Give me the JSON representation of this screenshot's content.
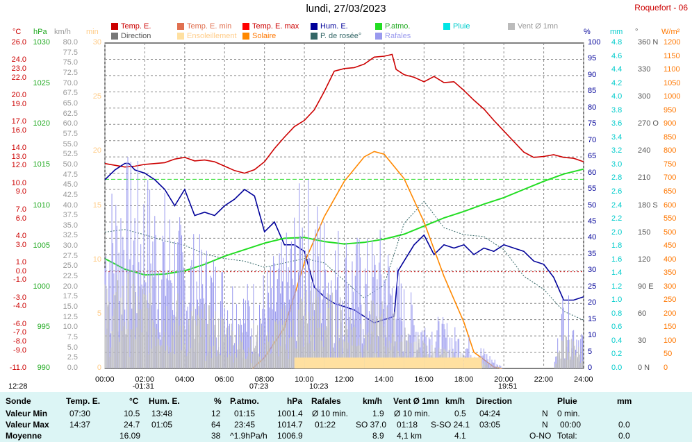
{
  "header": {
    "title": "lundi, 27/03/2023",
    "station": "Roquefort - 06"
  },
  "legend": [
    {
      "label": "Temp. E.",
      "color": "#cc0000",
      "text_color": "#cc0000"
    },
    {
      "label": "Temp. E. min",
      "color": "#e07050",
      "text_color": "#e07050"
    },
    {
      "label": "Temp. E. max",
      "color": "#ff0000",
      "text_color": "#cc0000"
    },
    {
      "label": "Hum. E.",
      "color": "#000099",
      "text_color": "#000099"
    },
    {
      "label": "P.atmo.",
      "color": "#22dd22",
      "text_color": "#22aa22"
    },
    {
      "label": "Pluie",
      "color": "#00e5e5",
      "text_color": "#00cccc"
    },
    {
      "label": "Vent Ø 1mn",
      "color": "#bbbbbb",
      "text_color": "#999999"
    },
    {
      "label": "Direction",
      "color": "#777777",
      "text_color": "#555555"
    },
    {
      "label": "Ensoleillement",
      "color": "#ffe0a0",
      "text_color": "#ffcc88"
    },
    {
      "label": "Solaire",
      "color": "#ff8800",
      "text_color": "#ff7700"
    },
    {
      "label": "P. de rosée°",
      "color": "#336666",
      "text_color": "#336666"
    },
    {
      "label": "Rafales",
      "color": "#9999ee",
      "text_color": "#9999ee"
    }
  ],
  "units": {
    "temp": "°C",
    "press": "hPa",
    "wind": "km/h",
    "sun": "min",
    "hum": "%",
    "rain": "mm",
    "dir": "°",
    "solar": "W/m²"
  },
  "axes": {
    "temp_ticks": [
      "26.0",
      "24.0",
      "23.0",
      "22.0",
      "20.0",
      "19.0",
      "17.0",
      "16.0",
      "14.0",
      "13.0",
      "12.0",
      "10.0",
      "9.0",
      "7.0",
      "6.0",
      "4.0",
      "3.0",
      "1.0",
      "0.0",
      "-1.0",
      "-3.0",
      "-4.0",
      "-6.0",
      "-7.0",
      "-8.0",
      "-9.0",
      "-11.0"
    ],
    "temp_values": [
      26,
      24,
      23,
      22,
      20,
      19,
      17,
      16,
      14,
      13,
      12,
      10,
      9,
      7,
      6,
      4,
      3,
      1,
      0,
      -1,
      -3,
      -4,
      -6,
      -7,
      -8,
      -9,
      -11
    ],
    "temp_range": [
      -11,
      26
    ],
    "press_ticks": [
      "1030",
      "1025",
      "1020",
      "1015",
      "1010",
      "1005",
      "1000",
      "995",
      "990"
    ],
    "press_range": [
      990,
      1030
    ],
    "wind_ticks": [
      "80.0",
      "77.5",
      "75.0",
      "72.5",
      "70.0",
      "67.5",
      "65.0",
      "62.5",
      "60.0",
      "57.5",
      "55.0",
      "52.5",
      "50.0",
      "47.5",
      "45.0",
      "42.5",
      "40.0",
      "37.5",
      "35.0",
      "32.5",
      "30.0",
      "27.5",
      "25.0",
      "22.5",
      "20.0",
      "17.5",
      "15.0",
      "12.5",
      "10.0",
      "7.5",
      "5.0",
      "2.5",
      "0.0"
    ],
    "wind_range": [
      0,
      80
    ],
    "sun_ticks": [
      "30",
      "25",
      "20",
      "15",
      "10",
      "5",
      "0"
    ],
    "sun_range": [
      0,
      30
    ],
    "hum_ticks": [
      "100",
      "95",
      "90",
      "85",
      "80",
      "75",
      "70",
      "65",
      "60",
      "55",
      "50",
      "45",
      "40",
      "35",
      "30",
      "25",
      "20",
      "15",
      "10",
      "5",
      "0"
    ],
    "hum_range": [
      0,
      100
    ],
    "rain_ticks": [
      "4.8",
      "4.6",
      "4.4",
      "4.2",
      "4.0",
      "3.8",
      "3.6",
      "3.4",
      "3.2",
      "3.0",
      "2.8",
      "2.6",
      "2.4",
      "2.2",
      "2.0",
      "1.8",
      "1.6",
      "1.4",
      "1.2",
      "1.0",
      "0.8",
      "0.6",
      "0.4",
      "0.2",
      "0.0"
    ],
    "rain_range": [
      0,
      4.8
    ],
    "dir_ticks": [
      "360 N",
      "330",
      "300",
      "270 O",
      "240",
      "210",
      "180 S",
      "150",
      "120",
      "90 E",
      "60",
      "30",
      "0 N"
    ],
    "dir_values": [
      360,
      330,
      300,
      270,
      240,
      210,
      180,
      150,
      120,
      90,
      60,
      30,
      0
    ],
    "dir_range": [
      0,
      360
    ],
    "solar_ticks": [
      "1200",
      "1150",
      "1100",
      "1050",
      "1000",
      "950",
      "900",
      "850",
      "800",
      "750",
      "700",
      "650",
      "600",
      "550",
      "500",
      "450",
      "400",
      "350",
      "300",
      "250",
      "200",
      "150",
      "100",
      "50",
      "0"
    ],
    "solar_range": [
      0,
      1200
    ],
    "time_ticks": [
      "00:00",
      "02:00",
      "04:00",
      "06:00",
      "08:00",
      "10:00",
      "12:00",
      "14:00",
      "16:00",
      "18:00",
      "20:00",
      "22:00",
      "24:00"
    ],
    "markers": [
      {
        "label": "12:28",
        "hour": -1
      },
      {
        "label": "-01:31",
        "hour": 1.52
      },
      {
        "label": "07:23",
        "hour": 7.38
      },
      {
        "label": "10:23",
        "hour": 10.38
      },
      {
        "label": "19:51",
        "hour": 19.85
      }
    ]
  },
  "chart_data": {
    "type": "line",
    "x_unit": "hour",
    "xlim": [
      0,
      24
    ],
    "series": [
      {
        "name": "Temp. E.",
        "axis": "temp",
        "color": "#cc0000",
        "x": [
          0,
          1,
          1.5,
          2,
          3,
          3.5,
          4,
          4.5,
          5,
          5.5,
          6,
          6.5,
          7,
          7.5,
          8,
          8.5,
          9,
          9.5,
          10,
          10.5,
          11,
          11.5,
          12,
          12.5,
          13,
          13.5,
          14,
          14.4,
          14.6,
          15,
          15.5,
          16,
          16.5,
          17,
          17.5,
          18,
          18.5,
          19,
          19.5,
          20,
          20.5,
          21,
          21.5,
          22,
          22.5,
          23,
          23.5,
          24
        ],
        "y": [
          12.3,
          11.9,
          12.0,
          12.2,
          12.4,
          12.8,
          13.0,
          12.6,
          12.7,
          12.5,
          12.0,
          11.5,
          11.2,
          11.6,
          12.5,
          14.0,
          15.3,
          16.5,
          17.2,
          18.4,
          20.5,
          22.8,
          23.1,
          23.2,
          23.6,
          24.4,
          24.5,
          24.7,
          23.0,
          22.4,
          22.1,
          21.6,
          22.2,
          21.5,
          21.6,
          20.6,
          19.5,
          18.5,
          17.2,
          16.0,
          14.8,
          13.6,
          13.0,
          13.1,
          13.3,
          13.0,
          12.9,
          12.5
        ]
      },
      {
        "name": "Hum. E.",
        "axis": "hum",
        "color": "#000099",
        "x": [
          0,
          0.5,
          1,
          1.2,
          1.5,
          2,
          2.5,
          3,
          3.5,
          4,
          4.5,
          5,
          5.5,
          6,
          6.5,
          7,
          7.5,
          8,
          8.5,
          9,
          9.5,
          10,
          10.5,
          11,
          11.5,
          12,
          12.5,
          13,
          13.5,
          14,
          14.5,
          14.7,
          15,
          15.5,
          16,
          16.5,
          17,
          17.5,
          18,
          18.5,
          19,
          19.5,
          20,
          20.5,
          21,
          21.5,
          22,
          22.5,
          23,
          23.5,
          24
        ],
        "y": [
          58,
          61,
          63,
          63,
          61,
          60,
          58,
          55,
          50,
          55,
          47,
          48,
          47,
          50,
          52,
          55,
          53,
          42,
          45,
          38,
          38,
          36,
          25,
          22,
          20,
          19,
          18,
          16,
          14,
          15,
          16,
          30,
          33,
          38,
          41,
          35,
          38,
          37,
          38,
          35,
          37,
          36,
          38,
          37,
          36,
          33,
          32,
          28,
          21,
          21,
          22
        ]
      },
      {
        "name": "P.atmo.",
        "axis": "press",
        "color": "#22dd22",
        "x": [
          0,
          1,
          2,
          3,
          4,
          5,
          6,
          7,
          8,
          9,
          10,
          11,
          12,
          13,
          14,
          15,
          16,
          17,
          18,
          19,
          20,
          21,
          22,
          23,
          24
        ],
        "y": [
          1003.5,
          1002.2,
          1001.5,
          1001.6,
          1002.0,
          1002.8,
          1003.8,
          1004.6,
          1005.4,
          1006.0,
          1006.1,
          1005.6,
          1005.3,
          1005.5,
          1005.9,
          1006.5,
          1007.5,
          1008.5,
          1009.3,
          1010.2,
          1011.0,
          1012.0,
          1013.0,
          1013.9,
          1014.5
        ]
      },
      {
        "name": "P. de rosée°",
        "axis": "temp",
        "color": "#336666",
        "dashed": true,
        "x": [
          0,
          1,
          2,
          3,
          4,
          5,
          6,
          7,
          8,
          9,
          10,
          11,
          12,
          13,
          14,
          15,
          16,
          17,
          18,
          19,
          20,
          21,
          22,
          23,
          24
        ],
        "y": [
          4.5,
          4.8,
          4.2,
          3.5,
          3.0,
          2.0,
          1.5,
          1.2,
          0.5,
          1.0,
          1.5,
          1.0,
          -1.0,
          -3.0,
          -1.5,
          5.5,
          8.0,
          5.0,
          4.2,
          4.0,
          2.5,
          -0.5,
          -2.0,
          -4.5,
          -5.5
        ]
      },
      {
        "name": "Solaire",
        "axis": "solar",
        "color": "#ff8800",
        "x": [
          7.4,
          8,
          9,
          10,
          11,
          12,
          13,
          13.5,
          14,
          15,
          16,
          17,
          18,
          18.5,
          19.5,
          19.9
        ],
        "y": [
          0,
          40,
          150,
          390,
          560,
          690,
          780,
          800,
          790,
          700,
          540,
          340,
          170,
          60,
          5,
          0
        ]
      },
      {
        "name": "Rafales",
        "axis": "wind",
        "color": "#9999ee",
        "noisy": true,
        "x": [
          0,
          1,
          2,
          3,
          4,
          5,
          6,
          7,
          8,
          9,
          10,
          11,
          12,
          13,
          14,
          15,
          16,
          17,
          18,
          19,
          20,
          21,
          22,
          22.5,
          23,
          23.5,
          24
        ],
        "y": [
          25,
          30,
          28,
          25,
          20,
          18,
          15,
          12,
          14,
          18,
          28,
          22,
          20,
          18,
          20,
          12,
          8,
          7,
          5,
          3,
          0,
          0,
          0,
          0,
          12,
          8,
          6
        ]
      },
      {
        "name": "Vent Ø 1mn",
        "axis": "wind",
        "color": "#bbbbbb",
        "noisy": true,
        "x": [
          0,
          1,
          2,
          3,
          4,
          5,
          6,
          7,
          8,
          9,
          10,
          11,
          12,
          13,
          14,
          15,
          16,
          17,
          18,
          19,
          20,
          21,
          22,
          22.5,
          23,
          23.5,
          24
        ],
        "y": [
          12,
          14,
          13,
          12,
          10,
          9,
          8,
          6,
          7,
          9,
          13,
          11,
          10,
          9,
          10,
          6,
          4,
          3,
          2,
          1,
          0,
          0,
          0,
          0,
          6,
          4,
          3
        ]
      },
      {
        "name": "Ensoleillement",
        "axis": "sun",
        "color": "#ffe0a0",
        "bars": true,
        "x": [
          9.5,
          10,
          11,
          12,
          13,
          14,
          15,
          16,
          17,
          18,
          18.9
        ],
        "y": [
          1,
          1,
          1,
          1,
          1,
          1,
          1,
          1,
          1,
          1,
          1
        ]
      }
    ],
    "ylim_temp": [
      -11,
      26
    ],
    "ylim_hum": [
      0,
      100
    ],
    "ylim_press": [
      990,
      1030
    ],
    "ylim_wind": [
      0,
      80
    ],
    "ylim_solar": [
      0,
      1200
    ]
  },
  "stats": {
    "headers": {
      "sonde": "Sonde",
      "temp": "Temp. E.",
      "temp_unit": "°C",
      "hum": "Hum. E.",
      "hum_unit": "%",
      "press": "P.atmo.",
      "press_unit": "hPa",
      "gust": "Rafales",
      "gust_unit": "km/h",
      "wind": "Vent Ø 1mn",
      "wind_unit": "km/h",
      "dir": "Direction",
      "rain": "Pluie",
      "rain_unit": "mm"
    },
    "row_labels": {
      "min": "Valeur Min",
      "max": "Valeur Max",
      "avg": "Moyenne"
    },
    "min": {
      "temp_t": "07:30",
      "temp_v": "10.5",
      "hum_t": "13:48",
      "hum_v": "12",
      "press_t": "01:15",
      "press_v": "1001.4",
      "gust_t": "Ø 10 min.",
      "gust_v": "1.9",
      "wind_t": "Ø 10 min.",
      "wind_v": "0.5",
      "dir_t": "04:24",
      "dir_v": "N",
      "rain_t": "0 min.",
      "rain_v": ""
    },
    "max": {
      "temp_t": "14:37",
      "temp_v": "24.7",
      "hum_t": "01:05",
      "hum_v": "64",
      "press_t": "23:45",
      "press_v": "1014.7",
      "gust_t": "01:22",
      "gust_v": "SO 37.0",
      "wind_t": "01:18",
      "wind_v": "S-SO 24.1",
      "dir_t": "03:05",
      "dir_v": "N",
      "rain_t": "00:00",
      "rain_v": "0.0"
    },
    "avg": {
      "temp_t": "",
      "temp_v": "16.09",
      "hum_t": "",
      "hum_v": "38",
      "press_t": "^1.9hPa/h",
      "press_v": "1006.9",
      "gust_t": "",
      "gust_v": "8.9",
      "wind_t": "4,1 km",
      "wind_v": "4.1",
      "dir_t": "",
      "dir_v": "O-NO",
      "rain_t": "Total:",
      "rain_v": "0.0"
    }
  }
}
